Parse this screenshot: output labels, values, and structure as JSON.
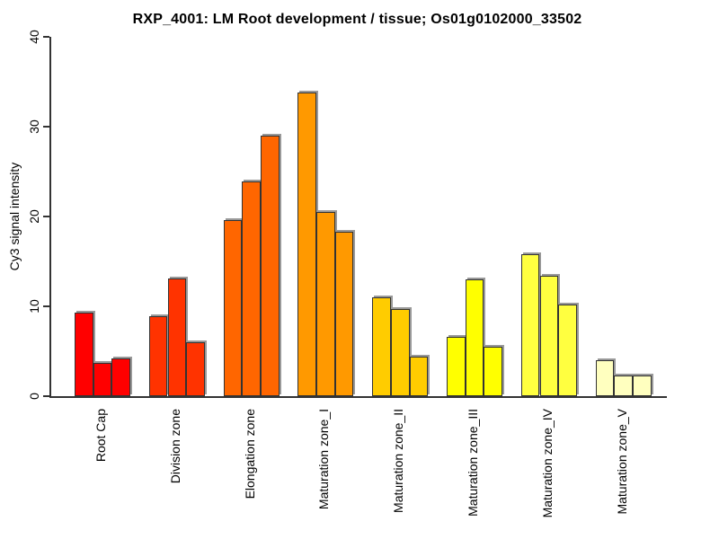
{
  "title": "RXP_4001: LM Root development / tissue; Os01g0102000_33502",
  "chart_data": {
    "type": "bar",
    "title": "RXP_4001: LM Root development / tissue; Os01g0102000_33502",
    "xlabel": "",
    "ylabel": "Cy3 signal intensity",
    "ylim": [
      0,
      40
    ],
    "yticks": [
      0,
      10,
      20,
      30,
      40
    ],
    "grid": false,
    "legend_position": "none",
    "bars_per_group": 3,
    "bar_border_color": "#333333",
    "bar_shadow_color": "#999999",
    "axis_color": "#333333",
    "background_color": "#ffffff",
    "categories": [
      "Root Cap",
      "Division zone",
      "Elongation zone",
      "Maturation zone_I",
      "Maturation zone_II",
      "Maturation zone_III",
      "Maturation zone_IV",
      "Maturation zone_V"
    ],
    "groups": [
      {
        "label": "Root Cap",
        "color": "#FF0000",
        "values": [
          9.3,
          3.7,
          4.2
        ]
      },
      {
        "label": "Division zone",
        "color": "#FF3300",
        "values": [
          8.9,
          13.1,
          6.0
        ]
      },
      {
        "label": "Elongation zone",
        "color": "#FF6600",
        "values": [
          19.6,
          23.9,
          29.0
        ]
      },
      {
        "label": "Maturation zone_I",
        "color": "#FF9900",
        "values": [
          33.8,
          20.5,
          18.3
        ]
      },
      {
        "label": "Maturation zone_II",
        "color": "#FFCC00",
        "values": [
          11.0,
          9.7,
          4.4
        ]
      },
      {
        "label": "Maturation zone_III",
        "color": "#FFFF00",
        "values": [
          6.6,
          13.0,
          5.5
        ]
      },
      {
        "label": "Maturation zone_IV",
        "color": "#FFFF40",
        "values": [
          15.8,
          13.4,
          10.2
        ]
      },
      {
        "label": "Maturation zone_V",
        "color": "#FFFFBF",
        "values": [
          4.0,
          2.3,
          2.3
        ]
      }
    ]
  }
}
